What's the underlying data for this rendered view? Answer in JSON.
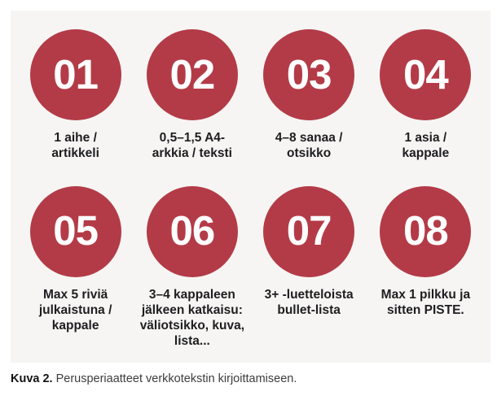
{
  "colors": {
    "page-bg": "#ffffff",
    "panel-bg": "#f6f5f3",
    "circle-bg": "#b33b47",
    "number-text": "#ffffff",
    "label-text": "#1e1e21",
    "caption-text": "#3d3d3d",
    "caption-label-text": "#141414"
  },
  "items": [
    {
      "number": "01",
      "label": "1 aihe /\nartikkeli"
    },
    {
      "number": "02",
      "label": "0,5–1,5 A4-\narkkia / teksti"
    },
    {
      "number": "03",
      "label": "4–8  sanaa /\notsikko"
    },
    {
      "number": "04",
      "label": "1 asia /\nkappale"
    },
    {
      "number": "05",
      "label": "Max 5 riviä\njulkaistuna /\nkappale"
    },
    {
      "number": "06",
      "label": "3–4 kappaleen\njälkeen katkaisu:\nväliotsikko, kuva,\nlista..."
    },
    {
      "number": "07",
      "label": "3+ -luetteloista\nbullet-lista"
    },
    {
      "number": "08",
      "label": "Max 1 pilkku ja\nsitten PISTE."
    }
  ],
  "caption": {
    "label": "Kuva 2.",
    "text": "Perusperiaatteet verkkotekstin kirjoittamiseen."
  }
}
